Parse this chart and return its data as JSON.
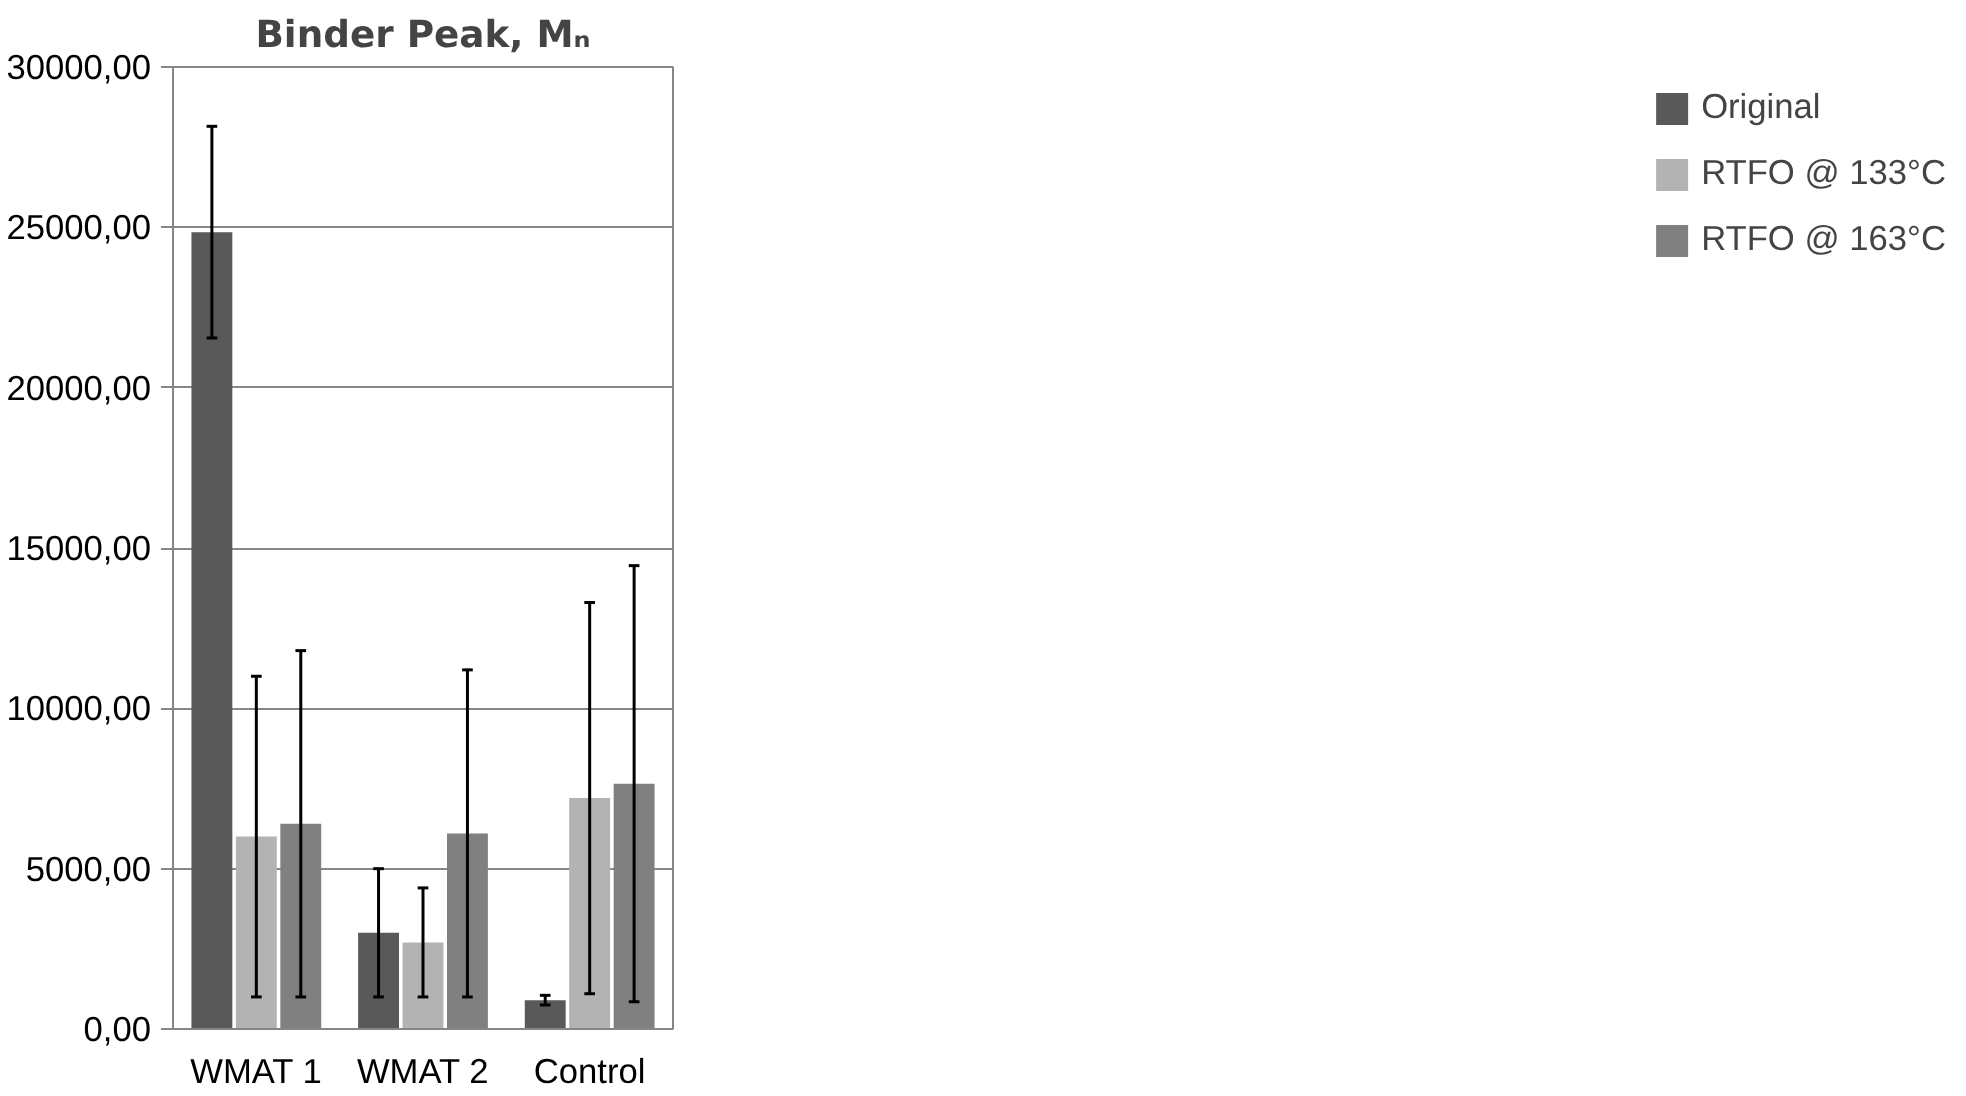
{
  "chart_data": {
    "type": "bar",
    "title": "Binder Peak, Mₙ",
    "categories": [
      "WMAT 1",
      "WMAT 2",
      "Control"
    ],
    "series": [
      {
        "name": "Original",
        "color": "#595959",
        "values": [
          24850,
          3000,
          900
        ],
        "errors": [
          3300,
          2000,
          150
        ]
      },
      {
        "name": "RTFO @ 133°C",
        "color": "#b3b3b3",
        "values": [
          6000,
          2700,
          7200
        ],
        "errors": [
          5000,
          1700,
          6100
        ]
      },
      {
        "name": "RTFO @ 163°C",
        "color": "#808080",
        "values": [
          6400,
          6100,
          7650
        ],
        "errors": [
          5400,
          5100,
          6800
        ]
      }
    ],
    "ylim": [
      0,
      30000
    ],
    "yticks": [
      {
        "value": 0,
        "label": "0,00"
      },
      {
        "value": 5000,
        "label": "5000,00"
      },
      {
        "value": 10000,
        "label": "10000,00"
      },
      {
        "value": 15000,
        "label": "15000,00"
      },
      {
        "value": 20000,
        "label": "20000,00"
      },
      {
        "value": 25000,
        "label": "25000,00"
      },
      {
        "value": 30000,
        "label": "30000,00"
      }
    ],
    "grid": "y",
    "legend": "right"
  }
}
